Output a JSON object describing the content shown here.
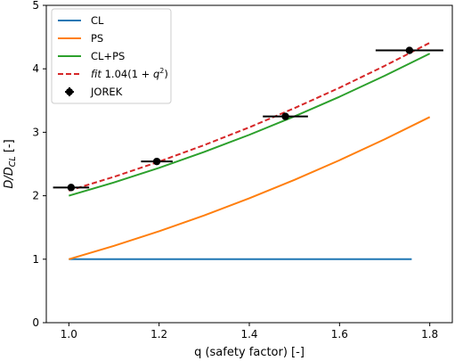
{
  "chart_data": {
    "type": "line",
    "xlabel": "q (safety factor) [-]",
    "ylabel": "D/D",
    "ylabel_sub": "CL",
    "ylabel_suffix": " [-]",
    "xlim": [
      0.95,
      1.85
    ],
    "ylim": [
      0,
      5
    ],
    "xticks": [
      1.0,
      1.2,
      1.4,
      1.6,
      1.8
    ],
    "xtick_labels": [
      "1.0",
      "1.2",
      "1.4",
      "1.6",
      "1.8"
    ],
    "yticks": [
      0,
      1,
      2,
      3,
      4,
      5
    ],
    "ytick_labels": [
      "0",
      "1",
      "2",
      "3",
      "4",
      "5"
    ],
    "grid": false,
    "legend_position": "top-left",
    "series": [
      {
        "name": "CL",
        "color": "#1f77b4",
        "style": "solid",
        "x": [
          1.0,
          1.76
        ],
        "y": [
          1.0,
          1.0
        ]
      },
      {
        "name": "PS",
        "color": "#ff7f0e",
        "style": "solid",
        "x": [
          1.0,
          1.1,
          1.2,
          1.3,
          1.4,
          1.5,
          1.6,
          1.7,
          1.8
        ],
        "y": [
          1.0,
          1.21,
          1.44,
          1.69,
          1.96,
          2.25,
          2.56,
          2.89,
          3.24
        ]
      },
      {
        "name": "CL+PS",
        "color": "#2ca02c",
        "style": "solid",
        "x": [
          1.0,
          1.1,
          1.2,
          1.3,
          1.4,
          1.5,
          1.6,
          1.7,
          1.8
        ],
        "y": [
          2.0,
          2.21,
          2.44,
          2.69,
          2.96,
          3.25,
          3.56,
          3.89,
          4.24
        ]
      },
      {
        "name": "fit 1.04(1 + q²)",
        "name_prefix": "fit",
        "name_rest": " 1.04(1 + ",
        "name_q": "q",
        "name_exp": "2",
        "name_close": ")",
        "color": "#d62728",
        "style": "dashed",
        "x": [
          1.0,
          1.1,
          1.2,
          1.3,
          1.4,
          1.5,
          1.6,
          1.7,
          1.8
        ],
        "y": [
          2.08,
          2.298,
          2.538,
          2.798,
          3.078,
          3.38,
          3.702,
          4.046,
          4.41
        ]
      }
    ],
    "errorbar_series": {
      "name": "JOREK",
      "color": "#000000",
      "points": [
        {
          "x": 1.005,
          "y": 2.13,
          "xerr": 0.04
        },
        {
          "x": 1.195,
          "y": 2.54,
          "xerr": 0.035
        },
        {
          "x": 1.48,
          "y": 3.25,
          "xerr": 0.05
        },
        {
          "x": 1.755,
          "y": 4.29,
          "xerr": 0.075
        }
      ]
    }
  }
}
